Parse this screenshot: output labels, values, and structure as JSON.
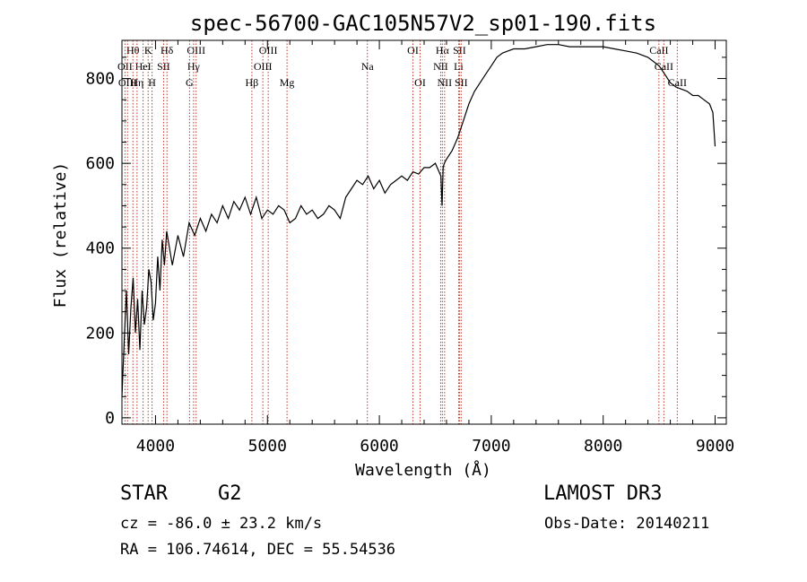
{
  "chart_data": {
    "type": "line",
    "title": "spec-56700-GAC105N57V2_sp01-190.fits",
    "xlabel": "Wavelength (Å)",
    "ylabel": "Flux (relative)",
    "xlim": [
      3700,
      9100
    ],
    "ylim": [
      -15,
      890
    ],
    "xticks": [
      4000,
      5000,
      6000,
      7000,
      8000,
      9000
    ],
    "xtick_labels": [
      "4000",
      "5000",
      "6000",
      "7000",
      "8000",
      "9000"
    ],
    "yticks": [
      0,
      200,
      400,
      600,
      800
    ],
    "ytick_labels": [
      "0",
      "200",
      "400",
      "600",
      "800"
    ],
    "grid": false,
    "series": [
      {
        "name": "flux",
        "x": [
          3700,
          3720,
          3740,
          3760,
          3780,
          3800,
          3820,
          3840,
          3860,
          3880,
          3900,
          3920,
          3940,
          3960,
          3980,
          4000,
          4020,
          4040,
          4060,
          4080,
          4100,
          4150,
          4200,
          4250,
          4300,
          4350,
          4400,
          4450,
          4500,
          4550,
          4600,
          4650,
          4700,
          4750,
          4800,
          4850,
          4900,
          4950,
          5000,
          5050,
          5100,
          5150,
          5200,
          5250,
          5300,
          5350,
          5400,
          5450,
          5500,
          5550,
          5600,
          5650,
          5700,
          5750,
          5800,
          5850,
          5900,
          5950,
          6000,
          6050,
          6100,
          6150,
          6200,
          6250,
          6300,
          6350,
          6400,
          6450,
          6500,
          6550,
          6560,
          6570,
          6580,
          6600,
          6650,
          6700,
          6750,
          6800,
          6850,
          6900,
          6950,
          7000,
          7050,
          7100,
          7150,
          7200,
          7300,
          7400,
          7500,
          7600,
          7700,
          7800,
          7900,
          8000,
          8100,
          8200,
          8300,
          8400,
          8500,
          8550,
          8600,
          8650,
          8700,
          8750,
          8800,
          8850,
          8900,
          8950,
          8980,
          9000
        ],
        "y": [
          50,
          180,
          300,
          150,
          260,
          330,
          200,
          280,
          160,
          300,
          220,
          260,
          350,
          320,
          230,
          270,
          380,
          300,
          420,
          360,
          440,
          360,
          430,
          380,
          460,
          430,
          470,
          440,
          480,
          460,
          500,
          470,
          510,
          490,
          520,
          480,
          520,
          470,
          490,
          480,
          500,
          490,
          460,
          470,
          500,
          480,
          490,
          470,
          480,
          500,
          490,
          470,
          520,
          540,
          560,
          550,
          570,
          540,
          560,
          530,
          550,
          560,
          570,
          560,
          580,
          575,
          590,
          590,
          600,
          570,
          500,
          590,
          600,
          610,
          630,
          660,
          700,
          740,
          770,
          790,
          810,
          830,
          850,
          860,
          865,
          870,
          870,
          875,
          880,
          880,
          875,
          875,
          875,
          875,
          870,
          865,
          860,
          850,
          830,
          810,
          790,
          780,
          775,
          770,
          760,
          760,
          750,
          740,
          720,
          640
        ]
      }
    ],
    "lines": [
      {
        "name": "Hθ",
        "x": 3798,
        "row": 0
      },
      {
        "name": "OII",
        "x": 3727,
        "row": 1
      },
      {
        "name": "OIII",
        "x": 3750,
        "row": 2
      },
      {
        "name": "K",
        "x": 3934,
        "row": 0
      },
      {
        "name": "HeI",
        "x": 3889,
        "row": 1
      },
      {
        "name": "Hη",
        "x": 3835,
        "row": 2
      },
      {
        "name": "SII",
        "x": 4072,
        "row": 1
      },
      {
        "name": "H",
        "x": 3969,
        "row": 2
      },
      {
        "name": "Hδ",
        "x": 4102,
        "row": 0
      },
      {
        "name": "OIII",
        "x": 4363,
        "row": 0
      },
      {
        "name": "Hγ",
        "x": 4340,
        "row": 1
      },
      {
        "name": "G",
        "x": 4304,
        "row": 2
      },
      {
        "name": "Hβ",
        "x": 4861,
        "row": 2
      },
      {
        "name": "OIII",
        "x": 5007,
        "row": 0
      },
      {
        "name": "OIII",
        "x": 4959,
        "row": 1
      },
      {
        "name": "Mg",
        "x": 5175,
        "row": 2
      },
      {
        "name": "Na",
        "x": 5893,
        "row": 1
      },
      {
        "name": "OI",
        "x": 6300,
        "row": 0
      },
      {
        "name": "OI",
        "x": 6364,
        "row": 2
      },
      {
        "name": "Hα",
        "x": 6563,
        "row": 0
      },
      {
        "name": "SII",
        "x": 6716,
        "row": 0
      },
      {
        "name": "NII",
        "x": 6548,
        "row": 1
      },
      {
        "name": "Li",
        "x": 6708,
        "row": 1
      },
      {
        "name": "NII",
        "x": 6583,
        "row": 2
      },
      {
        "name": "SII",
        "x": 6731,
        "row": 2
      },
      {
        "name": "CaII",
        "x": 8498,
        "row": 0
      },
      {
        "name": "CaII",
        "x": 8542,
        "row": 1
      },
      {
        "name": "CaII",
        "x": 8662,
        "row": 2
      }
    ]
  },
  "info": {
    "object_class": "STAR",
    "subclass": "G2",
    "survey": "LAMOST DR3",
    "redshift": "cz = -86.0 ± 23.2 km/s",
    "obs_date": "Obs-Date: 20140211",
    "coords": "RA = 106.74614, DEC =  55.54536"
  }
}
